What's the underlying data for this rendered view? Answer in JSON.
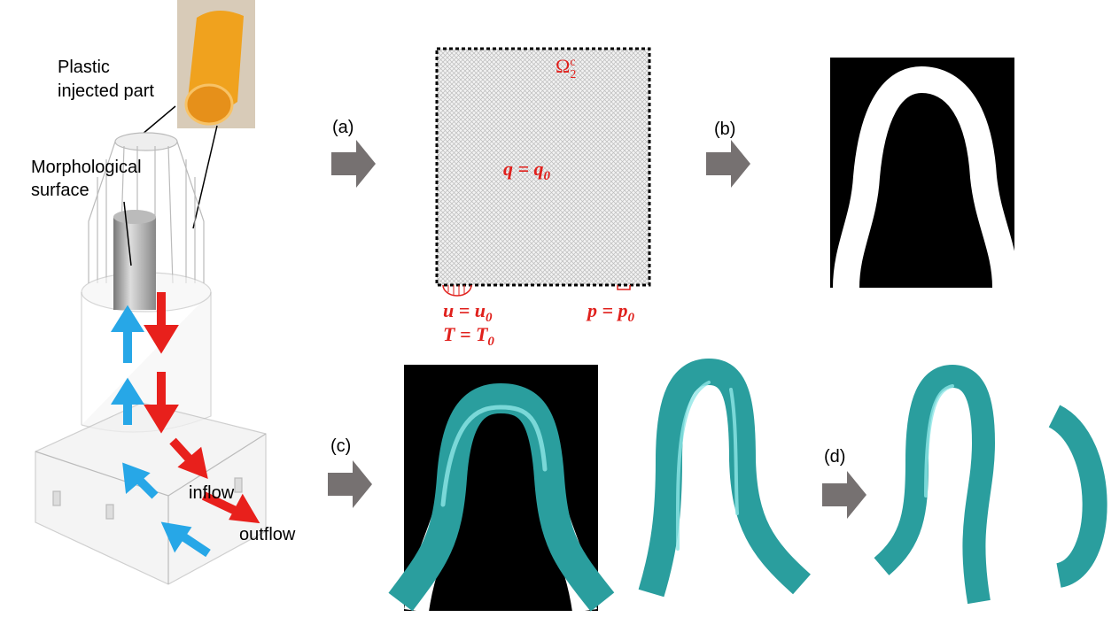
{
  "labels": {
    "plastic_part": [
      "Plastic",
      "injected part"
    ],
    "morph_surface": [
      "Morphological",
      "surface"
    ],
    "inflow": "inflow",
    "outflow": "outflow"
  },
  "steps": [
    "(a)",
    "(b)",
    "(c)",
    "(d)"
  ],
  "boundary": {
    "domain": {
      "base": "Ω",
      "sub": "2",
      "sup": "c"
    },
    "source": {
      "lhs": "q = q",
      "sub": "0"
    },
    "velocity": {
      "lhs": "u = u",
      "sub": "0"
    },
    "temperature": {
      "lhs": "T = T",
      "sub": "0"
    },
    "pressure": {
      "lhs": "p = p",
      "sub": "0"
    }
  }
}
